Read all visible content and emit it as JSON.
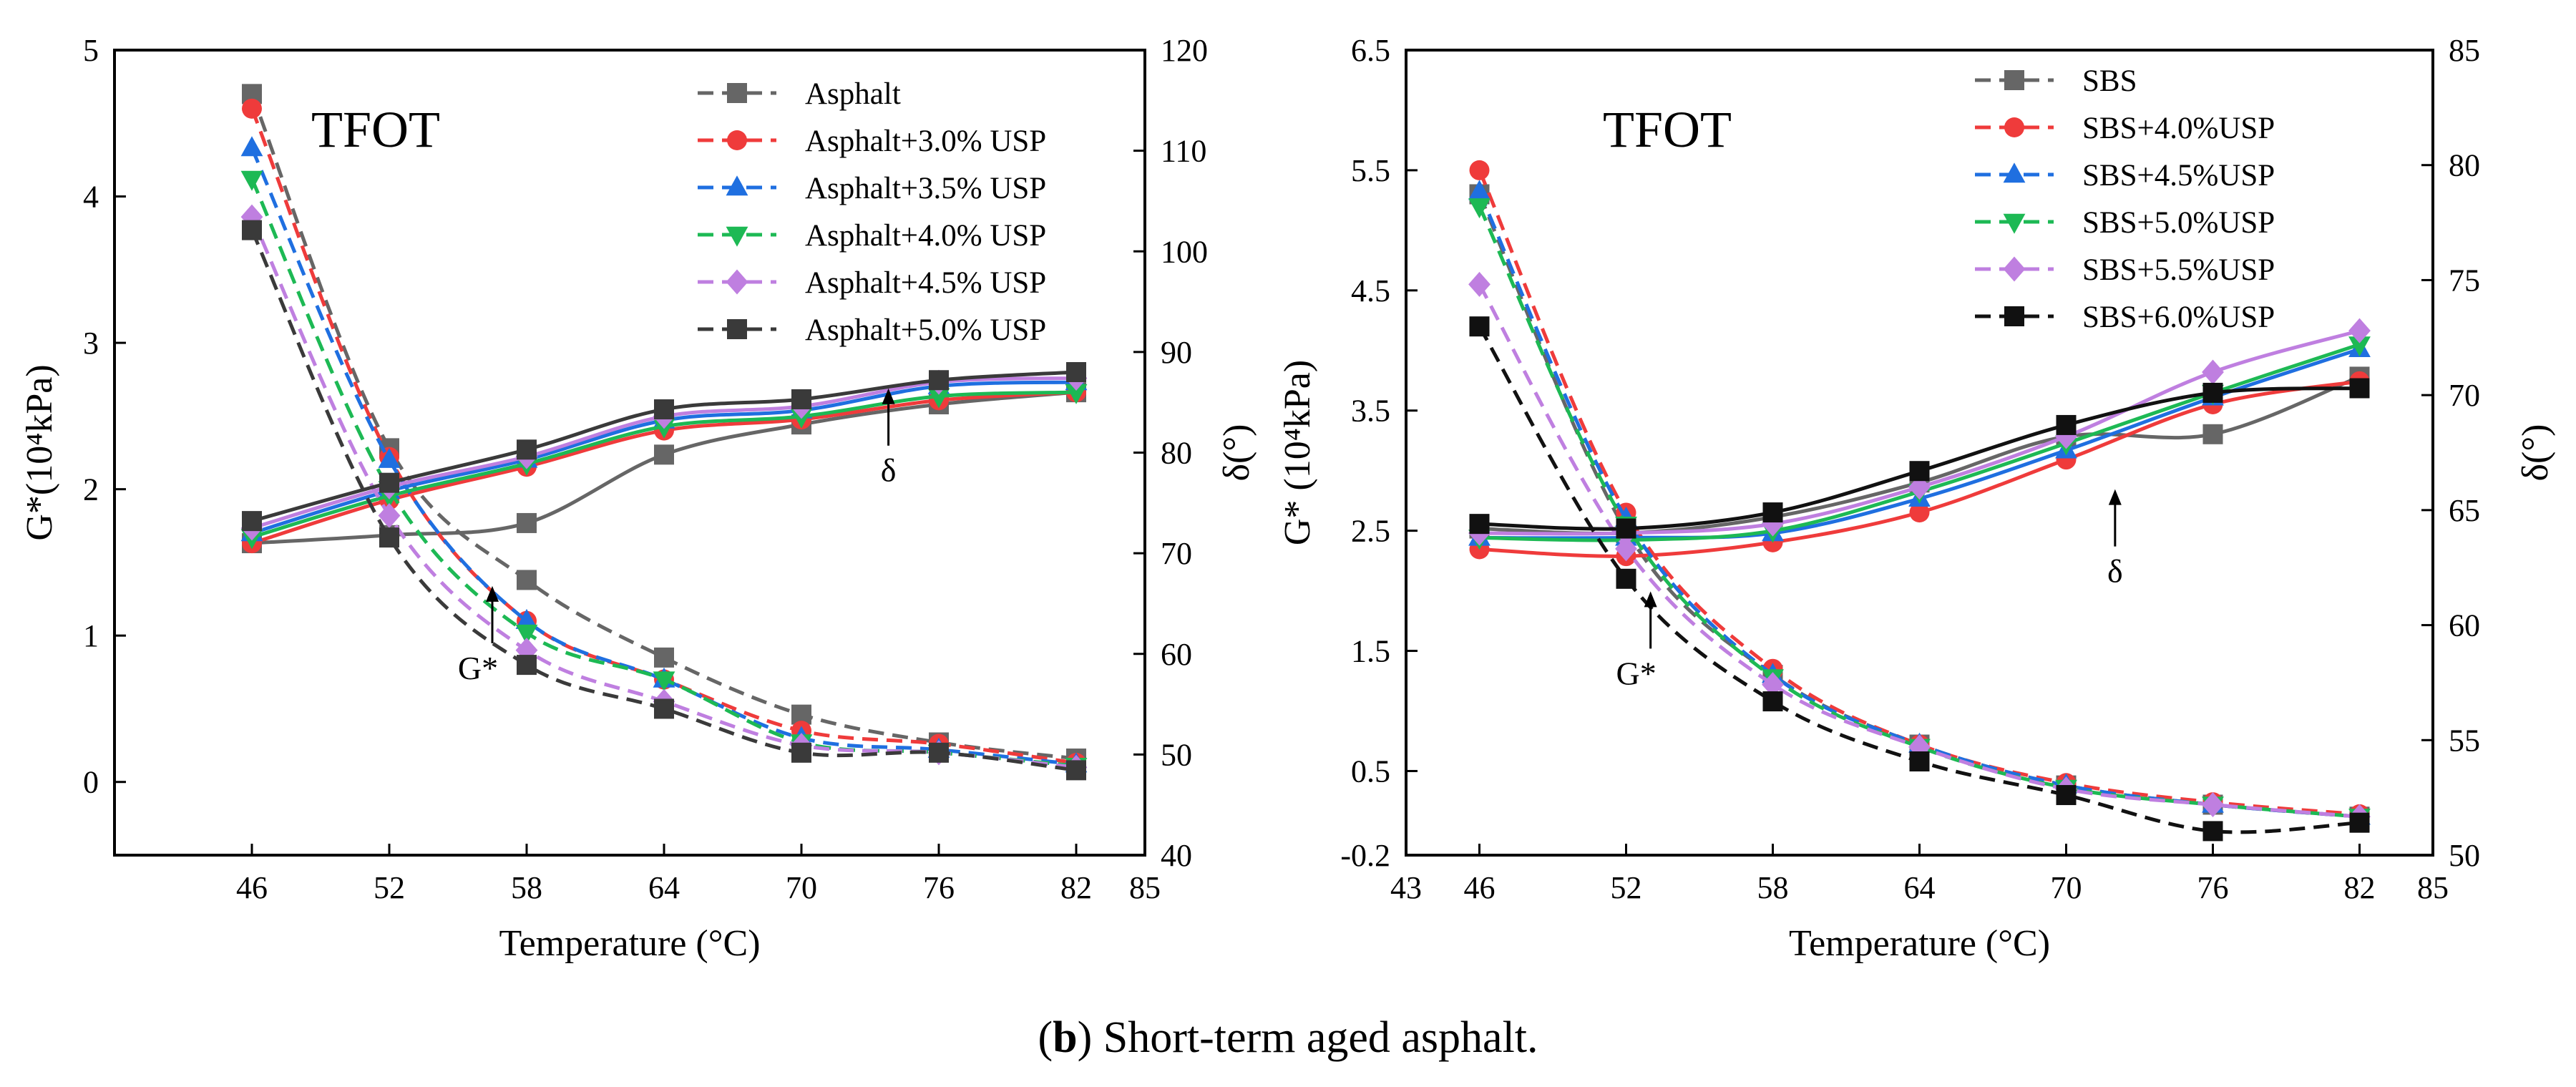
{
  "caption": {
    "bold": "b",
    "text": " Short-term aged asphalt."
  },
  "chart_data": [
    {
      "type": "line",
      "title": "TFOT",
      "xlabel": "Temperature (°C)",
      "ylabel": "G*(10⁴kPa)",
      "y2label": "δ(°)",
      "xlim": [
        40,
        85
      ],
      "ylim": [
        -0.5,
        5
      ],
      "y2lim": [
        40,
        120
      ],
      "x_ticks": [
        46,
        52,
        58,
        64,
        70,
        76,
        82,
        85
      ],
      "y_ticks": [
        0,
        1,
        2,
        3,
        4,
        5
      ],
      "y2_ticks": [
        40,
        50,
        60,
        70,
        80,
        90,
        100,
        110,
        120
      ],
      "annotations": [
        {
          "text": "G*",
          "x": 56.5,
          "y": 0.85
        },
        {
          "text": "δ",
          "x": 73.8,
          "y": 2.2
        }
      ],
      "x": [
        46,
        52,
        58,
        64,
        70,
        76,
        82
      ],
      "series": [
        {
          "name": "Asphalt",
          "color": "#666666",
          "marker": "square",
          "gstar": [
            4.7,
            2.28,
            1.38,
            0.85,
            0.46,
            0.27,
            0.16
          ],
          "delta": [
            71.0,
            71.8,
            73.0,
            79.8,
            82.8,
            84.8,
            86.0
          ]
        },
        {
          "name": "Asphalt+3.0% USP",
          "color": "#ef3b3b",
          "marker": "circle",
          "gstar": [
            4.6,
            2.22,
            1.1,
            0.7,
            0.35,
            0.26,
            0.13
          ],
          "delta": [
            71.0,
            75.3,
            78.6,
            82.2,
            83.3,
            85.2,
            86.0
          ]
        },
        {
          "name": "Asphalt+3.5% USP",
          "color": "#1f6fe0",
          "marker": "triangle",
          "gstar": [
            4.33,
            2.2,
            1.1,
            0.7,
            0.3,
            0.22,
            0.12
          ],
          "delta": [
            72.0,
            76.2,
            79.3,
            83.2,
            84.2,
            86.6,
            87.0
          ]
        },
        {
          "name": "Asphalt+4.0% USP",
          "color": "#1db954",
          "marker": "triangle-down",
          "gstar": [
            4.12,
            2.0,
            1.02,
            0.7,
            0.27,
            0.2,
            0.11
          ],
          "delta": [
            71.6,
            75.7,
            78.9,
            82.6,
            83.6,
            85.6,
            86.0
          ]
        },
        {
          "name": "Asphalt+4.5% USP",
          "color": "#bf7fe0",
          "marker": "diamond",
          "gstar": [
            3.86,
            1.82,
            0.9,
            0.55,
            0.25,
            0.2,
            0.1
          ],
          "delta": [
            72.5,
            76.6,
            79.6,
            83.6,
            84.6,
            87.0,
            87.4
          ]
        },
        {
          "name": "Asphalt+5.0% USP",
          "color": "#3a3a3a",
          "marker": "square",
          "gstar": [
            3.77,
            1.67,
            0.8,
            0.5,
            0.2,
            0.2,
            0.08
          ],
          "delta": [
            73.2,
            77.0,
            80.3,
            84.3,
            85.3,
            87.2,
            88.0
          ]
        }
      ]
    },
    {
      "type": "line",
      "title": "TFOT",
      "xlabel": "Temperature (°C)",
      "ylabel": "G* (10⁴kPa)",
      "y2label": "δ(°)",
      "xlim": [
        43,
        85
      ],
      "ylim": [
        -0.2,
        6.5
      ],
      "y2lim": [
        50,
        85
      ],
      "x_ticks": [
        43,
        46,
        52,
        58,
        64,
        70,
        76,
        82,
        85
      ],
      "y_ticks": [
        -0.2,
        0.5,
        1.5,
        2.5,
        3.5,
        4.5,
        5.5,
        6.5
      ],
      "y2_ticks": [
        50,
        55,
        60,
        65,
        70,
        75,
        80,
        85
      ],
      "annotations": [
        {
          "text": "G*",
          "x": 53,
          "y": 1.4
        },
        {
          "text": "δ",
          "x": 72,
          "y": 2.25
        }
      ],
      "x": [
        46,
        52,
        58,
        64,
        70,
        76,
        82
      ],
      "series": [
        {
          "name": "SBS",
          "color": "#666666",
          "marker": "square",
          "gstar": [
            5.3,
            2.5,
            1.3,
            0.72,
            0.38,
            0.22,
            0.12
          ],
          "delta": [
            64.2,
            64.0,
            64.7,
            66.2,
            68.2,
            68.3,
            70.8
          ]
        },
        {
          "name": "SBS+4.0%USP",
          "color": "#ef3b3b",
          "marker": "circle",
          "gstar": [
            5.5,
            2.65,
            1.35,
            0.72,
            0.4,
            0.24,
            0.14
          ],
          "delta": [
            63.3,
            63.0,
            63.6,
            64.9,
            67.2,
            69.6,
            70.6
          ]
        },
        {
          "name": "SBS+4.5%USP",
          "color": "#1f6fe0",
          "marker": "triangle",
          "gstar": [
            5.32,
            2.6,
            1.3,
            0.72,
            0.38,
            0.22,
            0.12
          ],
          "delta": [
            63.8,
            63.8,
            64.0,
            65.5,
            67.6,
            69.9,
            72.0
          ]
        },
        {
          "name": "SBS+5.0%USP",
          "color": "#1db954",
          "marker": "triangle-down",
          "gstar": [
            5.2,
            2.55,
            1.28,
            0.7,
            0.36,
            0.22,
            0.12
          ],
          "delta": [
            63.8,
            63.7,
            64.1,
            65.8,
            67.9,
            70.1,
            72.2
          ]
        },
        {
          "name": "SBS+5.5%USP",
          "color": "#bf7fe0",
          "marker": "diamond",
          "gstar": [
            4.55,
            2.35,
            1.22,
            0.7,
            0.35,
            0.22,
            0.12
          ],
          "delta": [
            64.0,
            64.0,
            64.4,
            66.0,
            68.2,
            71.0,
            72.8
          ]
        },
        {
          "name": "SBS+6.0%USP",
          "color": "#111111",
          "marker": "square-filled",
          "gstar": [
            4.2,
            2.1,
            1.08,
            0.58,
            0.3,
            0.0,
            0.07
          ],
          "delta": [
            64.4,
            64.2,
            64.9,
            66.7,
            68.7,
            70.1,
            70.3
          ]
        }
      ]
    }
  ]
}
